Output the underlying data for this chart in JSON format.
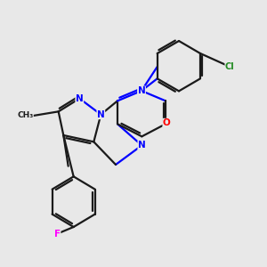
{
  "bg_color": "#e8e8e8",
  "bond_color": "#1a1a1a",
  "N_color": "#0000ff",
  "O_color": "#ff0000",
  "Cl_color": "#228B22",
  "F_color": "#ff00ff",
  "line_width": 1.6,
  "dbo": 0.055,
  "xlim": [
    -3.2,
    3.5
  ],
  "ylim": [
    -3.5,
    3.2
  ]
}
